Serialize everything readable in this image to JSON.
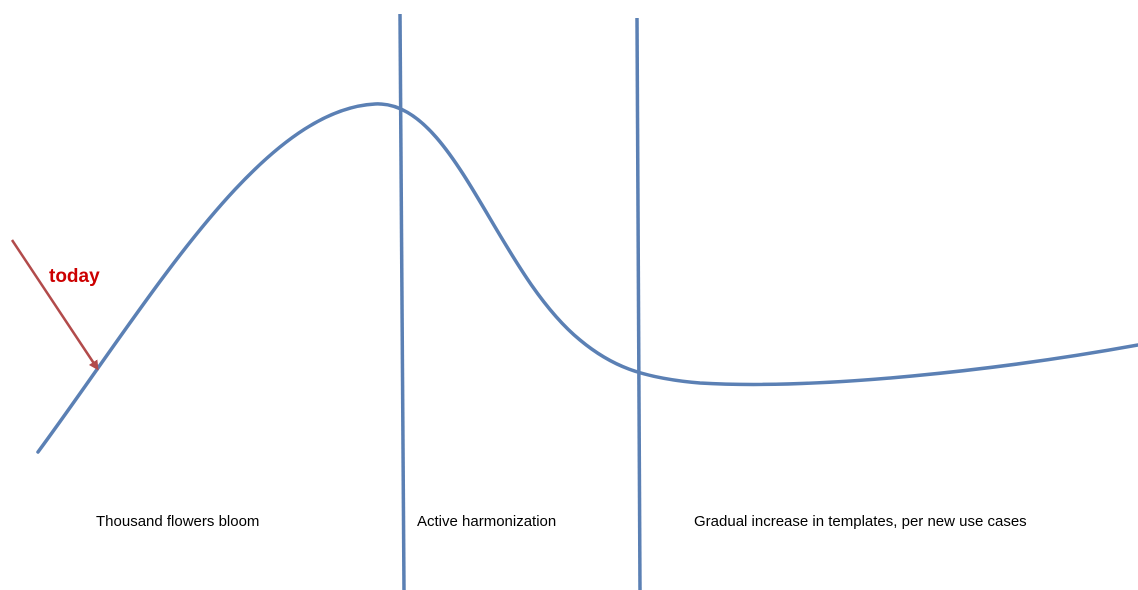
{
  "diagram": {
    "marker": {
      "label": "today",
      "color": "#cc0000",
      "arrow_color": "#b24b4b"
    },
    "curve_color": "#5b80b4",
    "phases": [
      {
        "label": "Thousand flowers bloom"
      },
      {
        "label": "Active harmonization"
      },
      {
        "label": "Gradual increase in templates, per new use cases"
      }
    ]
  }
}
